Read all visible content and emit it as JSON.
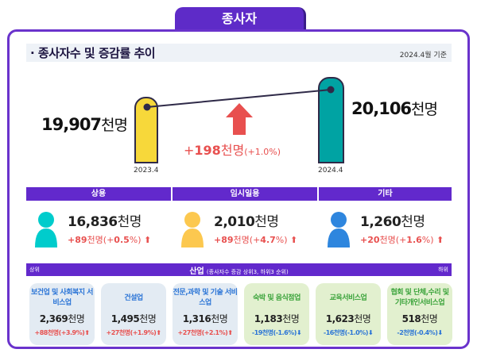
{
  "tab": "종사자",
  "title": "· 종사자수 및 증감률 추이",
  "basis": "2024.4월 기준",
  "colors": {
    "accent": "#6229cc",
    "increase": "#e8504f",
    "decrease": "#2a74d6",
    "bar_2023": "#f7d83a",
    "bar_2024": "#00a3a3"
  },
  "trend": {
    "start": {
      "value": "19,907",
      "unit": "천명",
      "period": "2023.4"
    },
    "end": {
      "value": "20,106",
      "unit": "천명",
      "period": "2024.4"
    },
    "change": {
      "sign": "+",
      "value": "198",
      "unit": "천명",
      "pct": "(+1.0%)"
    }
  },
  "types": [
    {
      "label": "상용",
      "value": "16,836",
      "unit": "천명",
      "change": "+89",
      "cunit": "천명",
      "pct_open": "(+",
      "pct": "0.5",
      "pct_close": "%)",
      "color": "#00cccc"
    },
    {
      "label": "임시일용",
      "value": "2,010",
      "unit": "천명",
      "change": "+89",
      "cunit": "천명",
      "pct_open": "(+",
      "pct": "4.7",
      "pct_close": "%)",
      "color": "#fcc84f"
    },
    {
      "label": "기타",
      "value": "1,260",
      "unit": "천명",
      "change": "+20",
      "cunit": "천명",
      "pct_open": "(+",
      "pct": "1.6",
      "pct_close": "%)",
      "color": "#2e86de"
    }
  ],
  "industry": {
    "title": "산업",
    "note": "(종사자수 증감 상위3, 하위3 순위)",
    "left": "상위",
    "right": "하위",
    "cards": [
      {
        "name": "보건업 및 사회복지 서비스업",
        "value": "2,369",
        "unit": "천명",
        "change": "+88천명(+3.9%)",
        "dir": "up"
      },
      {
        "name": "건설업",
        "value": "1,495",
        "unit": "천명",
        "change": "+27천명(+1.9%)",
        "dir": "up"
      },
      {
        "name": "전문,과학 및 기술 서비스업",
        "value": "1,316",
        "unit": "천명",
        "change": "+27천명(+2.1%)",
        "dir": "up"
      },
      {
        "name": "숙박 및 음식점업",
        "value": "1,183",
        "unit": "천명",
        "change": "-19천명(-1.6%)",
        "dir": "down"
      },
      {
        "name": "교육서비스업",
        "value": "1,623",
        "unit": "천명",
        "change": "-16천명(-1.0%)",
        "dir": "down"
      },
      {
        "name": "협회 및 단체,수리 및 기타개인서비스업",
        "value": "518",
        "unit": "천명",
        "change": "-2천명(-0.4%)",
        "dir": "down"
      }
    ]
  }
}
